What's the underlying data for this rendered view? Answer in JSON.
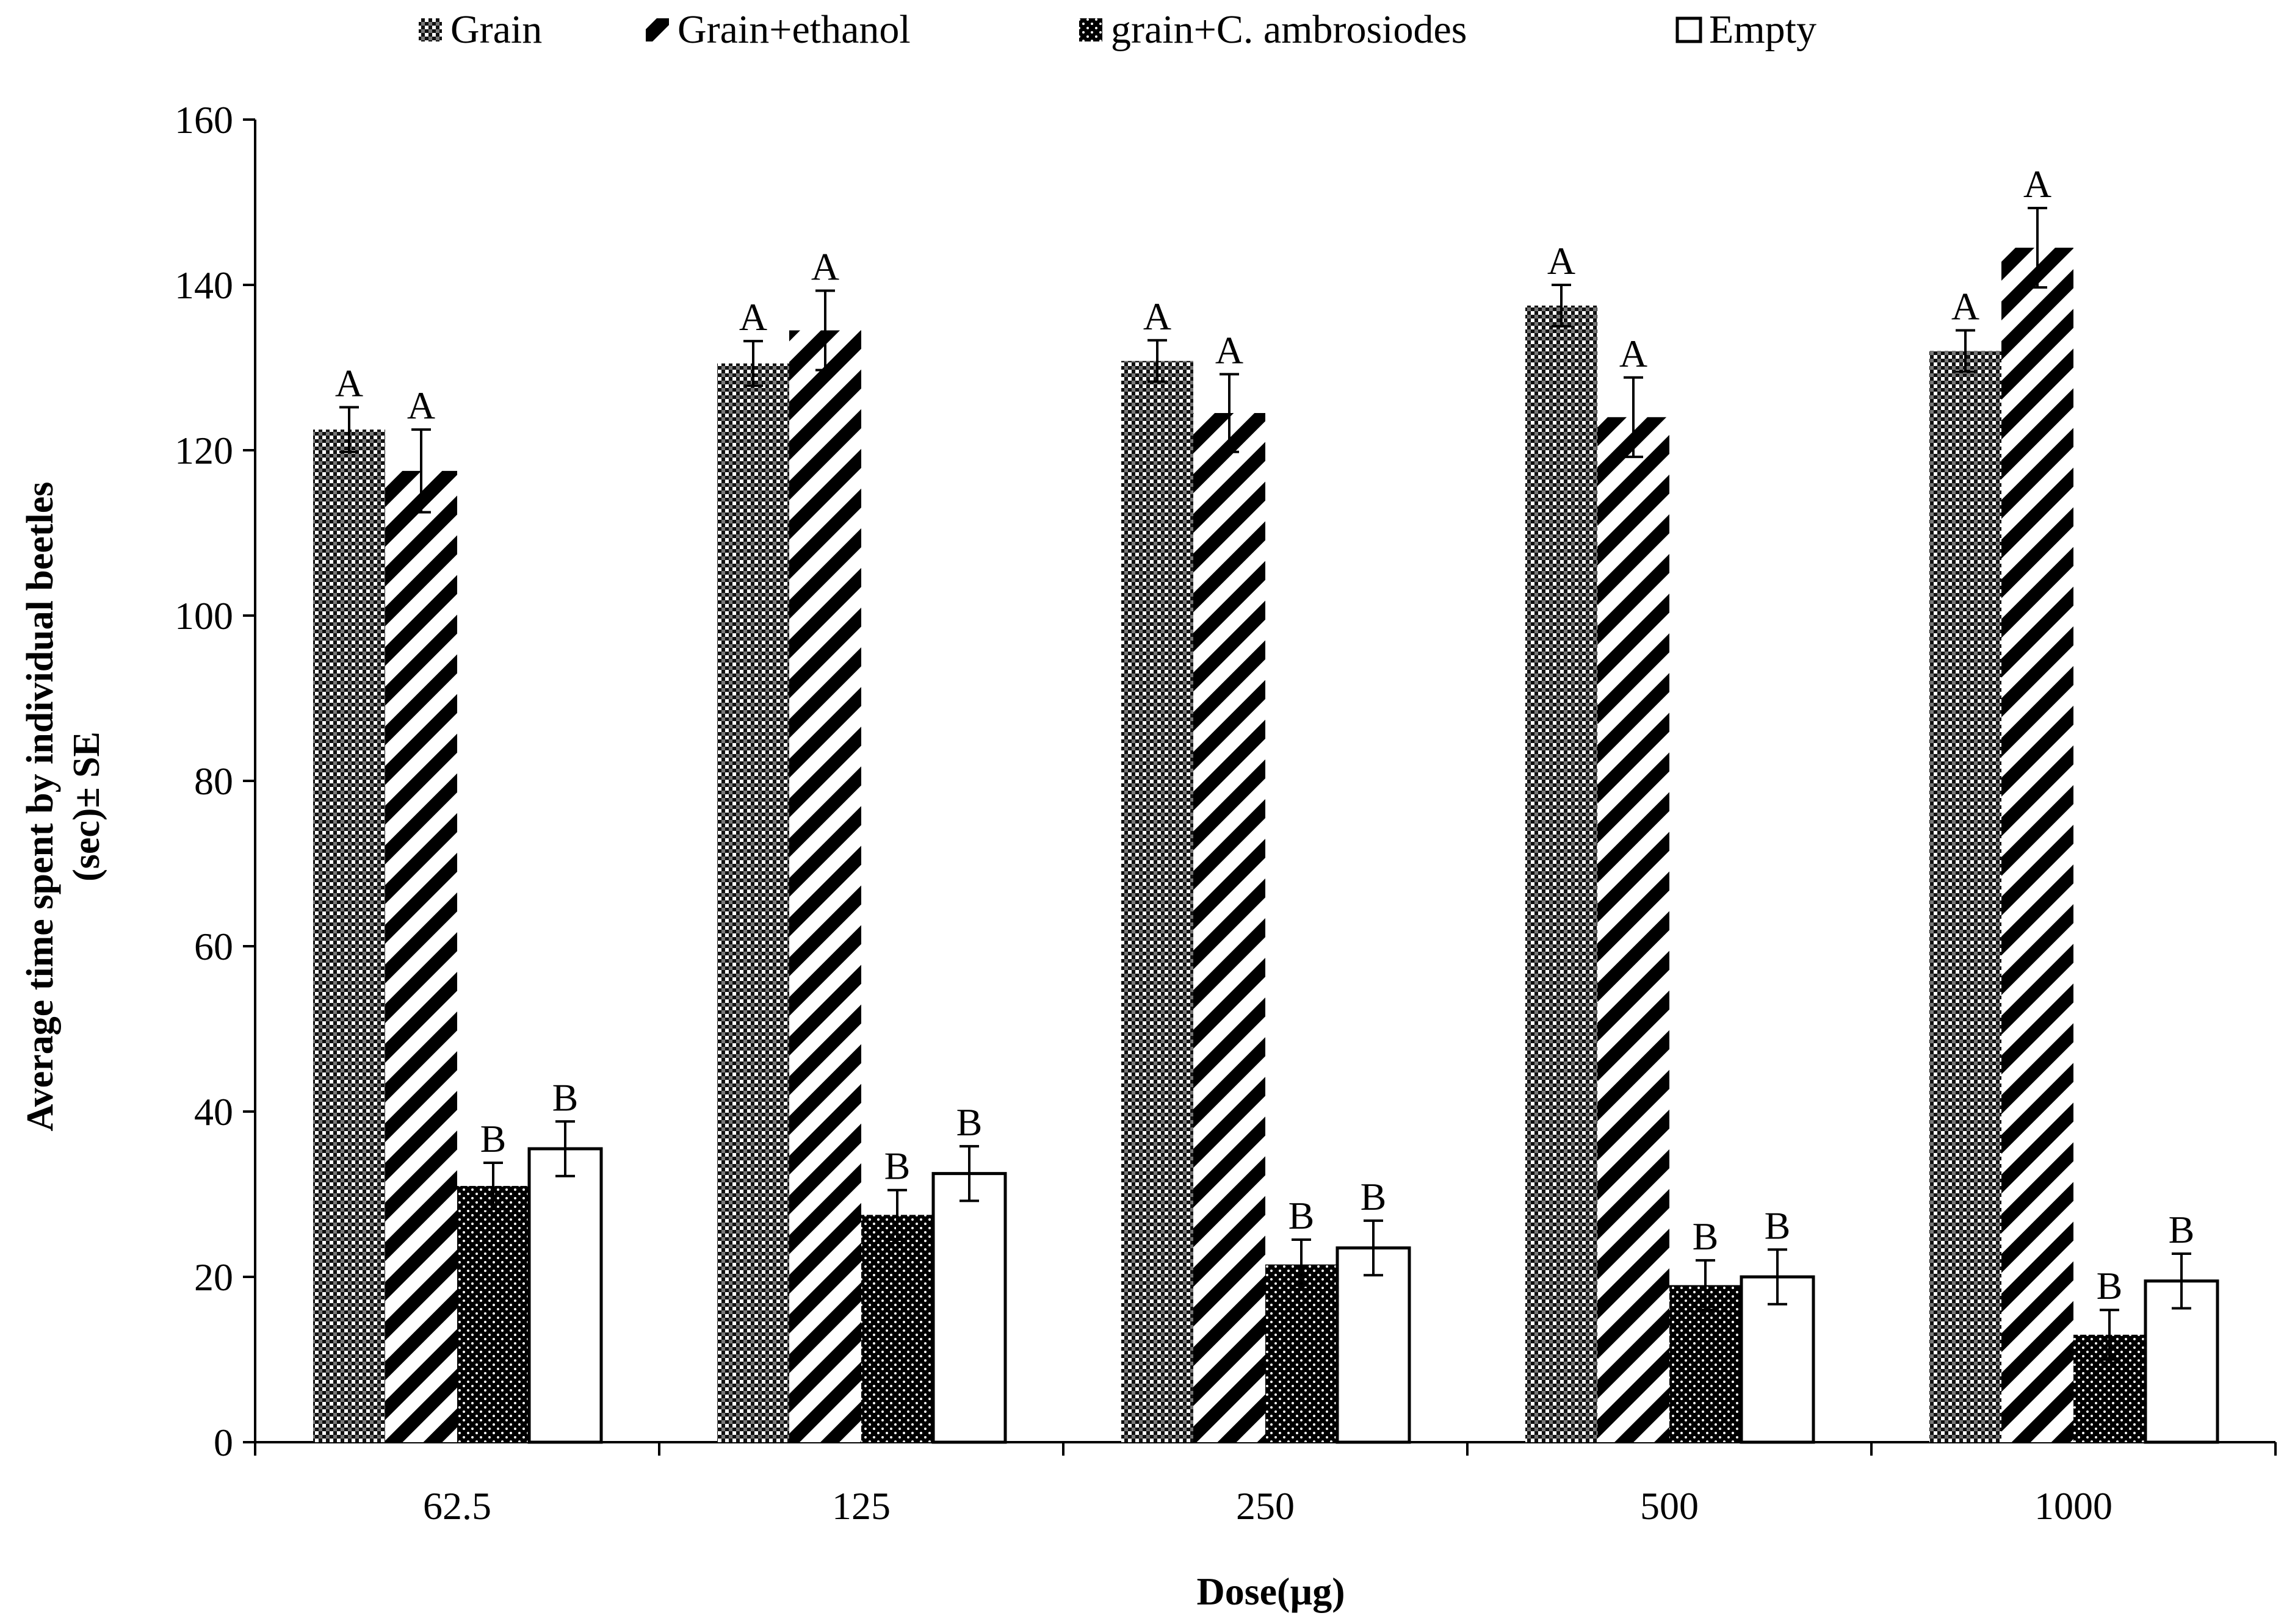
{
  "chart_data": {
    "type": "bar",
    "title": "",
    "xlabel": "Dose(µg)",
    "ylabel_line1": "Average time spent by individual beetles",
    "ylabel_line2": "(sec)± SE",
    "categories": [
      "62.5",
      "125",
      "250",
      "500",
      "1000"
    ],
    "ylim": [
      0,
      160
    ],
    "yticks": [
      0,
      20,
      40,
      60,
      80,
      100,
      120,
      140,
      160
    ],
    "grid": false,
    "legend_position": "top",
    "series": [
      {
        "name": "Grain",
        "pattern": "checker",
        "values": [
          122.5,
          130.5,
          130.8,
          137.5,
          132.0
        ],
        "errors": [
          2.7,
          2.7,
          2.5,
          2.5,
          2.5
        ],
        "labels": [
          "A",
          "A",
          "A",
          "A",
          "A"
        ]
      },
      {
        "name": "Grain+ethanol",
        "pattern": "diagonal",
        "values": [
          117.5,
          134.5,
          124.5,
          124.0,
          144.5
        ],
        "errors": [
          5.0,
          4.8,
          4.7,
          4.8,
          4.8
        ],
        "labels": [
          "A",
          "A",
          "A",
          "A",
          "A"
        ]
      },
      {
        "name": "grain+C. ambrosiodes",
        "pattern": "dotted-black",
        "values": [
          31.0,
          27.5,
          21.5,
          19.0,
          13.0
        ],
        "errors": [
          2.8,
          3.0,
          3.0,
          3.0,
          3.0
        ],
        "labels": [
          "B",
          "B",
          "B",
          "B",
          "B"
        ]
      },
      {
        "name": "Empty",
        "pattern": "white",
        "values": [
          35.5,
          32.5,
          23.5,
          20.0,
          19.5
        ],
        "errors": [
          3.3,
          3.3,
          3.3,
          3.3,
          3.3
        ],
        "labels": [
          "B",
          "B",
          "B",
          "B",
          "B"
        ]
      }
    ]
  }
}
